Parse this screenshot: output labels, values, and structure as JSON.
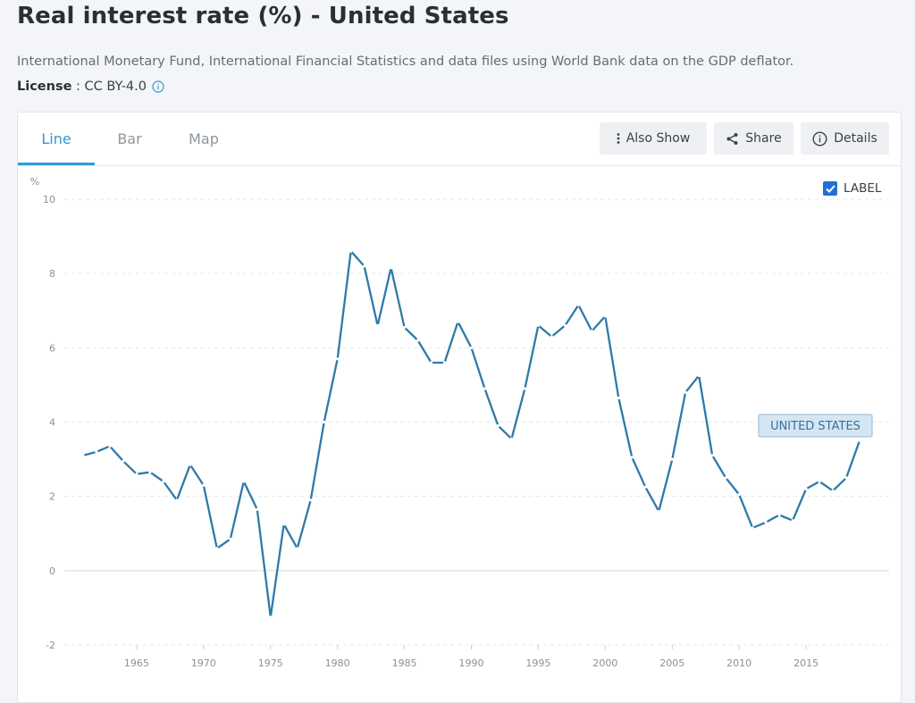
{
  "page": {
    "title": "Real interest rate (%) - United States",
    "source": "International Monetary Fund, International Financial Statistics and data files using World Bank data on the GDP deflator.",
    "license_label": "License",
    "license_sep": ":",
    "license_value": "CC BY-4.0"
  },
  "tabs": [
    {
      "label": "Line",
      "active": true
    },
    {
      "label": "Bar",
      "active": false
    },
    {
      "label": "Map",
      "active": false
    }
  ],
  "toolbar": {
    "also_show": "Also Show",
    "share": "Share",
    "details": "Details"
  },
  "label_toggle": {
    "text": "LABEL",
    "checked": true
  },
  "colors": {
    "line": "#2f7aa8",
    "accent": "#2d9bd6",
    "grid": "#e3e6ea",
    "series_label_bg": "#d5e6f3",
    "series_label_border": "#8fb8d8",
    "series_label_text": "#3b6f97"
  },
  "chart_data": {
    "type": "line",
    "unit_label": "%",
    "ylim": [
      -2,
      10
    ],
    "yticks": [
      -2,
      0,
      2,
      4,
      6,
      8,
      10
    ],
    "xticks": [
      1965,
      1970,
      1975,
      1980,
      1985,
      1990,
      1995,
      2000,
      2005,
      2010,
      2015
    ],
    "xlim": [
      1959.6,
      2021.2
    ],
    "grid": true,
    "series": [
      {
        "name": "UNITED STATES",
        "x": [
          1961,
          1962,
          1963,
          1964,
          1965,
          1966,
          1967,
          1968,
          1969,
          1970,
          1971,
          1972,
          1973,
          1974,
          1975,
          1976,
          1977,
          1978,
          1979,
          1980,
          1981,
          1982,
          1983,
          1984,
          1985,
          1986,
          1987,
          1988,
          1989,
          1990,
          1991,
          1992,
          1993,
          1994,
          1995,
          1996,
          1997,
          1998,
          1999,
          2000,
          2001,
          2002,
          2003,
          2004,
          2005,
          2006,
          2007,
          2008,
          2009,
          2010,
          2011,
          2012,
          2013,
          2014,
          2015,
          2016,
          2017,
          2018,
          2019
        ],
        "values": [
          3.1,
          3.2,
          3.35,
          2.95,
          2.6,
          2.65,
          2.4,
          1.9,
          2.85,
          2.3,
          0.6,
          0.85,
          2.4,
          1.65,
          -1.25,
          1.25,
          0.6,
          1.9,
          4.0,
          5.7,
          8.6,
          8.2,
          6.6,
          8.15,
          6.55,
          6.2,
          5.6,
          5.6,
          6.7,
          6.0,
          4.9,
          3.9,
          3.55,
          4.9,
          6.6,
          6.3,
          6.6,
          7.15,
          6.45,
          6.85,
          4.65,
          3.05,
          2.25,
          1.6,
          3.0,
          4.8,
          5.25,
          3.1,
          2.5,
          2.05,
          1.15,
          1.3,
          1.5,
          1.35,
          2.2,
          2.4,
          2.15,
          2.5,
          3.5
        ]
      }
    ]
  }
}
